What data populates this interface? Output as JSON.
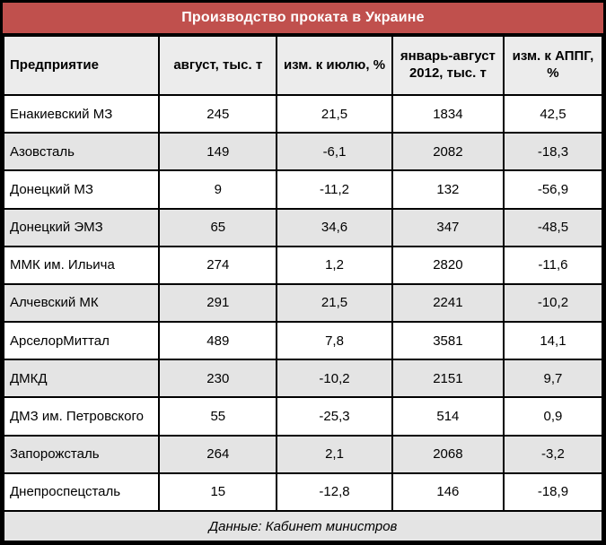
{
  "colors": {
    "title_bg": "#C0504D",
    "title_text": "#FFFFFF",
    "header_bg": "#ECECEC",
    "alt_row_bg": "#E4E4E4",
    "border": "#000000"
  },
  "chart_data": {
    "type": "table",
    "title": "Производство проката в Украине",
    "columns": [
      "Предприятие",
      "август, тыс. т",
      "изм. к июлю, %",
      "январь-август 2012, тыс. т",
      "изм. к АППГ, %"
    ],
    "rows": [
      {
        "cells": [
          "Енакиевский МЗ",
          "245",
          "21,5",
          "1834",
          "42,5"
        ]
      },
      {
        "cells": [
          "Азовсталь",
          "149",
          "-6,1",
          "2082",
          "-18,3"
        ]
      },
      {
        "cells": [
          "Донецкий МЗ",
          "9",
          "-11,2",
          "132",
          "-56,9"
        ]
      },
      {
        "cells": [
          "Донецкий ЭМЗ",
          "65",
          "34,6",
          "347",
          "-48,5"
        ]
      },
      {
        "cells": [
          "ММК им. Ильича",
          "274",
          "1,2",
          "2820",
          "-11,6"
        ]
      },
      {
        "cells": [
          "Алчевский МК",
          "291",
          "21,5",
          "2241",
          "-10,2"
        ]
      },
      {
        "cells": [
          "АрселорМиттал",
          "489",
          "7,8",
          "3581",
          "14,1"
        ]
      },
      {
        "cells": [
          "ДМКД",
          "230",
          "-10,2",
          "2151",
          "9,7"
        ]
      },
      {
        "cells": [
          "ДМЗ им. Петровского",
          "55",
          "-25,3",
          "514",
          "0,9"
        ]
      },
      {
        "cells": [
          "Запорожсталь",
          "264",
          "2,1",
          "2068",
          "-3,2"
        ]
      },
      {
        "cells": [
          "Днепроспецсталь",
          "15",
          "-12,8",
          "146",
          "-18,9"
        ]
      }
    ],
    "footer": "Данные: Кабинет министров"
  }
}
